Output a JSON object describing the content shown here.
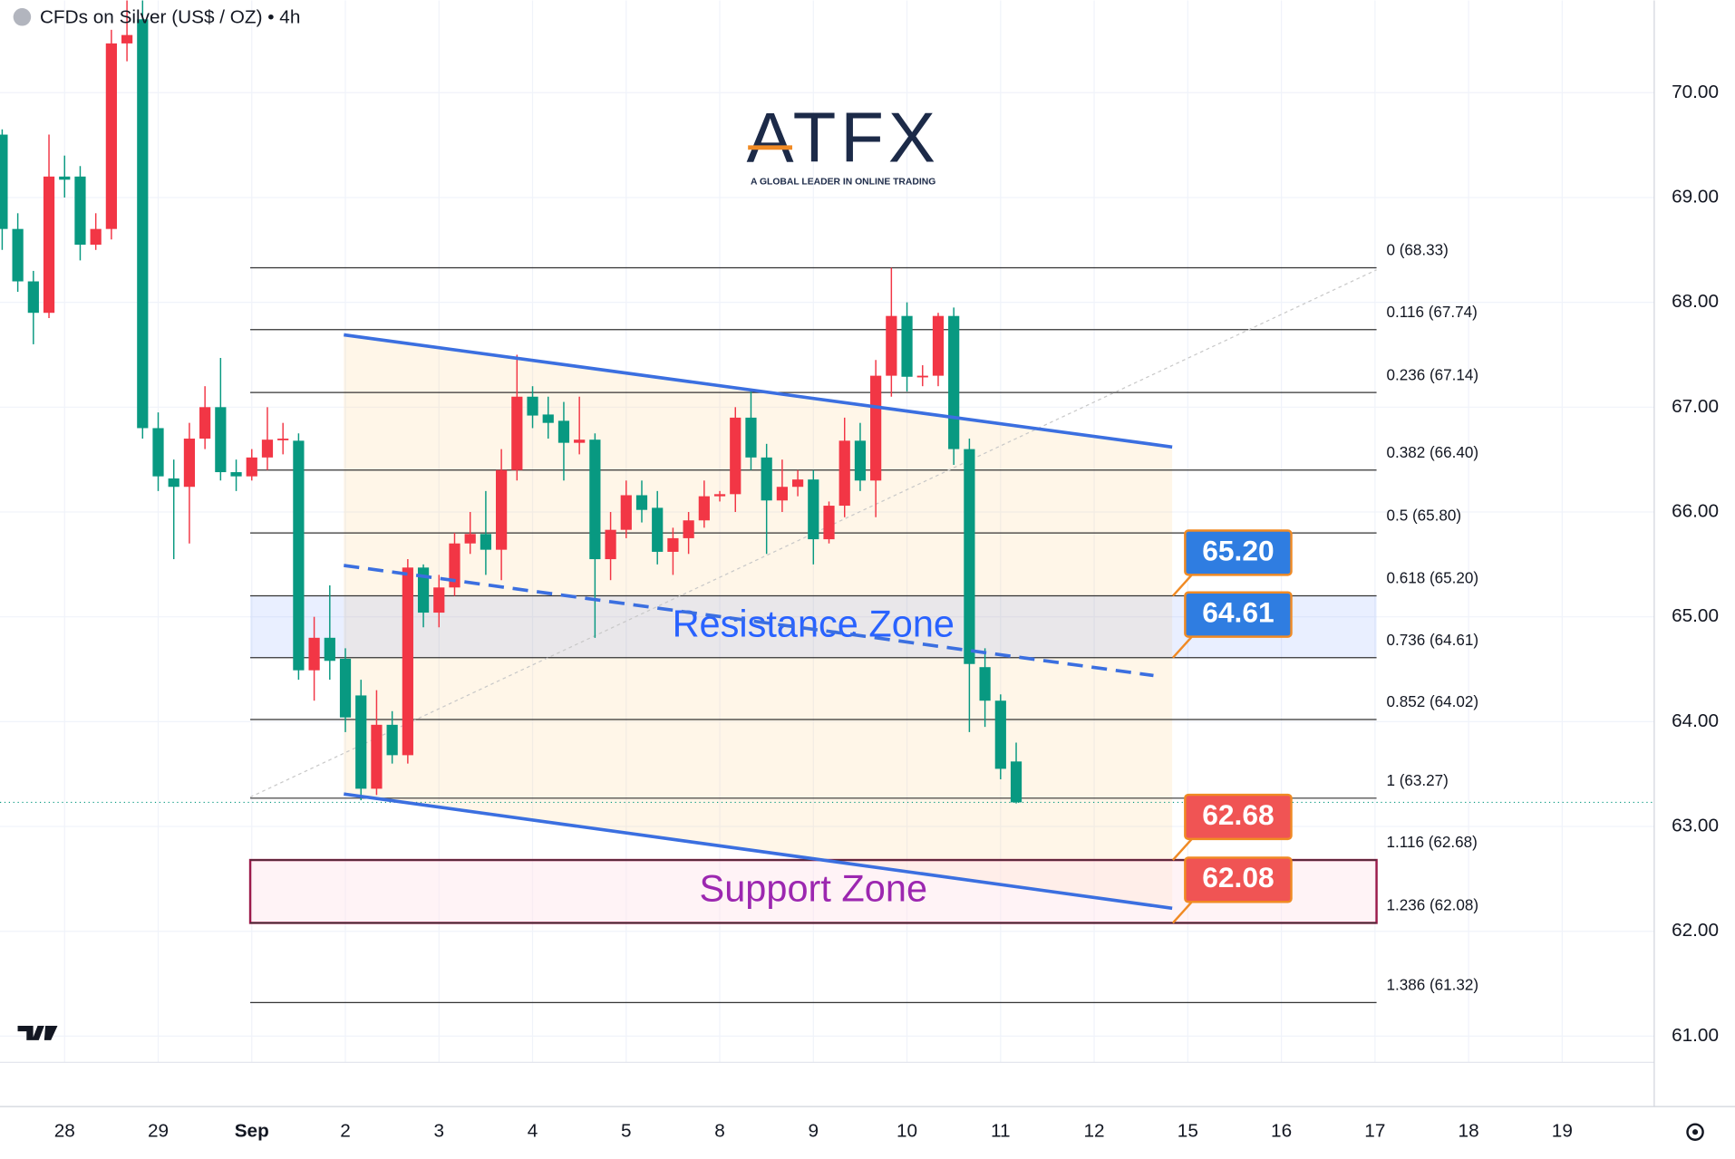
{
  "chart_data": {
    "type": "candlestick",
    "title": "CFDs on Silver (US$ / OZ) • 4h",
    "logo": {
      "name": "ATFX",
      "tagline": "A GLOBAL LEADER IN ONLINE TRADING"
    },
    "up_color": "#f23645",
    "down_color": "#089981",
    "open": [
      69.6,
      68.7,
      68.2,
      67.9,
      69.2,
      69.2,
      68.55,
      68.7,
      70.47,
      70.7,
      66.8,
      66.32,
      66.24,
      66.7,
      67.0,
      66.38,
      66.34,
      66.52,
      66.69,
      66.68,
      64.49,
      64.8,
      64.6,
      64.25,
      63.36,
      63.97,
      63.68,
      65.47,
      65.04,
      65.28,
      65.7,
      65.79,
      65.64,
      66.4,
      67.1,
      66.93,
      66.87,
      66.66,
      66.69,
      65.55,
      65.83,
      66.16,
      66.04,
      65.62,
      65.75,
      65.92,
      66.15,
      66.17,
      66.9,
      66.52,
      66.11,
      66.24,
      66.31,
      65.74,
      66.06,
      66.68,
      66.3,
      67.3,
      67.87,
      67.29,
      67.3,
      67.87,
      66.6,
      64.52,
      64.2,
      63.62
    ],
    "high": [
      69.65,
      68.85,
      68.3,
      69.6,
      69.4,
      69.3,
      68.85,
      70.6,
      70.9,
      70.9,
      66.95,
      66.5,
      66.85,
      67.2,
      67.47,
      66.5,
      66.6,
      67.0,
      66.85,
      66.75,
      65.0,
      65.3,
      64.7,
      64.4,
      64.3,
      64.1,
      65.55,
      65.5,
      65.4,
      65.8,
      66.0,
      66.2,
      66.6,
      67.5,
      67.2,
      67.1,
      67.05,
      67.1,
      66.75,
      66.0,
      66.3,
      66.3,
      66.2,
      65.85,
      66.0,
      66.3,
      66.2,
      67.0,
      67.15,
      66.65,
      66.5,
      66.4,
      66.4,
      66.1,
      66.9,
      66.85,
      67.45,
      68.33,
      68.0,
      67.4,
      67.9,
      67.95,
      66.7,
      64.7,
      64.26,
      63.8
    ],
    "low": [
      68.5,
      68.1,
      67.6,
      67.85,
      69.0,
      68.4,
      68.5,
      68.6,
      70.3,
      66.7,
      66.2,
      65.55,
      65.7,
      66.6,
      66.3,
      66.2,
      66.3,
      66.4,
      66.55,
      64.4,
      64.2,
      64.4,
      63.9,
      63.25,
      63.3,
      63.6,
      63.6,
      64.9,
      64.9,
      65.2,
      65.6,
      65.4,
      65.35,
      66.3,
      66.8,
      66.7,
      66.3,
      66.55,
      64.8,
      65.35,
      65.75,
      65.9,
      65.5,
      65.4,
      65.6,
      65.85,
      66.1,
      66.0,
      66.4,
      65.6,
      66.0,
      66.15,
      65.5,
      65.7,
      65.95,
      66.2,
      65.95,
      67.1,
      67.15,
      67.2,
      67.2,
      66.45,
      63.9,
      63.95,
      63.45,
      63.22
    ],
    "close": [
      68.7,
      68.2,
      67.9,
      69.2,
      69.17,
      68.55,
      68.7,
      70.47,
      70.55,
      66.8,
      66.34,
      66.24,
      66.7,
      67.0,
      66.38,
      66.34,
      66.52,
      66.69,
      66.7,
      64.49,
      64.8,
      64.58,
      64.04,
      63.36,
      63.97,
      63.68,
      65.47,
      65.04,
      65.28,
      65.7,
      65.79,
      65.64,
      66.4,
      67.1,
      66.92,
      66.85,
      66.66,
      66.69,
      65.55,
      65.83,
      66.16,
      66.02,
      65.62,
      65.75,
      65.92,
      66.15,
      66.17,
      66.9,
      66.52,
      66.11,
      66.24,
      66.31,
      65.74,
      66.06,
      66.68,
      66.3,
      67.3,
      67.87,
      67.29,
      67.3,
      67.87,
      66.6,
      64.55,
      64.2,
      63.55,
      63.23
    ],
    "xlim": [
      -0.14,
      105.9
    ],
    "xticks": [
      {
        "value": 4,
        "label": "28"
      },
      {
        "value": 10,
        "label": "29"
      },
      {
        "value": 16,
        "label": "Sep"
      },
      {
        "value": 22,
        "label": "2"
      },
      {
        "value": 28,
        "label": "3"
      },
      {
        "value": 34,
        "label": "4"
      },
      {
        "value": 40,
        "label": "5"
      },
      {
        "value": 46,
        "label": "8"
      },
      {
        "value": 52,
        "label": "9"
      },
      {
        "value": 58,
        "label": "10"
      },
      {
        "value": 64,
        "label": "11"
      },
      {
        "value": 70,
        "label": "12"
      },
      {
        "value": 76,
        "label": "15"
      },
      {
        "value": 82,
        "label": "16"
      },
      {
        "value": 88,
        "label": "17"
      },
      {
        "value": 94,
        "label": "18"
      },
      {
        "value": 100,
        "label": "19"
      }
    ],
    "ylim": [
      60.75,
      70.88
    ],
    "yticks": [
      {
        "value": 61,
        "label": "61.00"
      },
      {
        "value": 62,
        "label": "62.00"
      },
      {
        "value": 63,
        "label": "63.00"
      },
      {
        "value": 64,
        "label": "64.00"
      },
      {
        "value": 65,
        "label": "65.00"
      },
      {
        "value": 66,
        "label": "66.00"
      },
      {
        "value": 67,
        "label": "67.00"
      },
      {
        "value": 68,
        "label": "68.00"
      },
      {
        "value": 69,
        "label": "69.00"
      },
      {
        "value": 70,
        "label": "70.00"
      }
    ],
    "fib_x_range": [
      15.9,
      88.1
    ],
    "fib_levels": [
      {
        "value": 68.33,
        "label": "0 (68.33)"
      },
      {
        "value": 67.74,
        "label": "0.116 (67.74)"
      },
      {
        "value": 67.14,
        "label": "0.236 (67.14)"
      },
      {
        "value": 66.4,
        "label": "0.382 (66.40)"
      },
      {
        "value": 65.8,
        "label": "0.5 (65.80)"
      },
      {
        "value": 65.2,
        "label": "0.618 (65.20)"
      },
      {
        "value": 64.61,
        "label": "0.736 (64.61)"
      },
      {
        "value": 64.02,
        "label": "0.852 (64.02)"
      },
      {
        "value": 63.27,
        "label": "1 (63.27)"
      },
      {
        "value": 62.68,
        "label": "1.116 (62.68)"
      },
      {
        "value": 62.08,
        "label": "1.236 (62.08)"
      },
      {
        "value": 61.32,
        "label": "1.386 (61.32)"
      }
    ],
    "fib_trend": [
      [
        15.9,
        63.28
      ],
      [
        88.1,
        68.31
      ]
    ],
    "channel": {
      "upper": [
        [
          21.9,
          67.69
        ],
        [
          75.0,
          66.62
        ]
      ],
      "lower": [
        [
          21.9,
          63.31
        ],
        [
          75.0,
          62.22
        ]
      ],
      "middle": [
        [
          21.9,
          65.49
        ],
        [
          73.8,
          64.44
        ]
      ]
    },
    "zones": [
      {
        "label": "Resistance Zone",
        "low": 64.61,
        "high": 65.2,
        "color": "#2962ff"
      },
      {
        "label": "Support Zone",
        "low": 62.08,
        "high": 62.68,
        "color": "#9c27b0"
      }
    ],
    "price_badges": [
      {
        "value": 65.2,
        "label": "65.20",
        "color": "#2f7de1"
      },
      {
        "value": 64.61,
        "label": "64.61",
        "color": "#2f7de1"
      },
      {
        "value": 62.68,
        "label": "62.68",
        "color": "#f05454"
      },
      {
        "value": 62.08,
        "label": "62.08",
        "color": "#f05454"
      }
    ]
  }
}
